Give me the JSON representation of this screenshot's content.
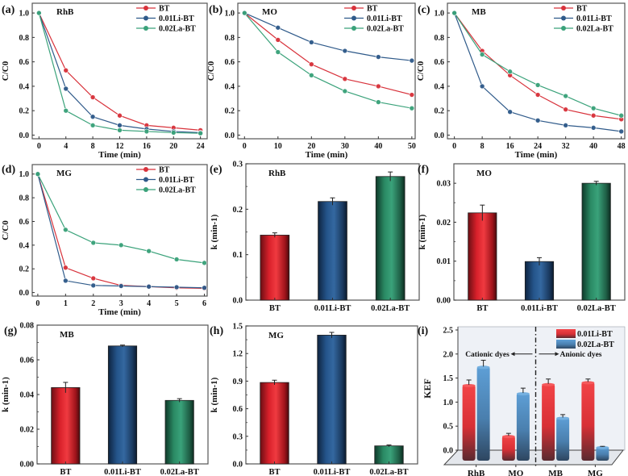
{
  "figure": {
    "colors": {
      "BT": "#d8323b",
      "0.01Li-BT": "#2f5a8a",
      "0.02La-BT": "#3aa27a",
      "kef_Li": "#e03a3e",
      "kef_La": "#5a98cf",
      "frame": "#555555"
    }
  },
  "chart_data": [
    {
      "id": "a",
      "panel_label": "(a)",
      "type": "line",
      "title": "RhB",
      "xlabel": "Time (min)",
      "ylabel": "C/C0",
      "xlim": [
        -1,
        25
      ],
      "ylim": [
        -0.03,
        1.08
      ],
      "xticks": [
        0,
        4,
        8,
        12,
        16,
        20,
        24
      ],
      "yticks": [
        0.0,
        0.2,
        0.4,
        0.6,
        0.8,
        1.0
      ],
      "ytick_labels": [
        "0.0",
        "0.2",
        "0.4",
        "0.6",
        "0.8",
        "1.0"
      ],
      "legend": "top-right",
      "x": [
        0,
        4,
        8,
        12,
        16,
        20,
        24
      ],
      "series": [
        {
          "name": "BT",
          "values": [
            1.0,
            0.53,
            0.31,
            0.16,
            0.08,
            0.06,
            0.04
          ]
        },
        {
          "name": "0.01Li-BT",
          "values": [
            1.0,
            0.38,
            0.15,
            0.08,
            0.05,
            0.03,
            0.02
          ]
        },
        {
          "name": "0.02La-BT",
          "values": [
            1.0,
            0.2,
            0.08,
            0.04,
            0.03,
            0.02,
            0.015
          ]
        }
      ]
    },
    {
      "id": "b",
      "panel_label": "(b)",
      "type": "line",
      "title": "MO",
      "xlabel": "Time (min)",
      "ylabel": "C/C0",
      "xlim": [
        -2,
        51
      ],
      "ylim": [
        -0.03,
        1.08
      ],
      "xticks": [
        0,
        10,
        20,
        30,
        40,
        50
      ],
      "yticks": [
        0.0,
        0.2,
        0.4,
        0.6,
        0.8,
        1.0
      ],
      "ytick_labels": [
        "0.0",
        "0.2",
        "0.4",
        "0.6",
        "0.8",
        "1.0"
      ],
      "legend": "top-right",
      "x": [
        0,
        10,
        20,
        30,
        40,
        50
      ],
      "series": [
        {
          "name": "BT",
          "values": [
            1.0,
            0.78,
            0.58,
            0.46,
            0.4,
            0.33
          ]
        },
        {
          "name": "0.01Li-BT",
          "values": [
            1.0,
            0.88,
            0.76,
            0.69,
            0.64,
            0.61
          ]
        },
        {
          "name": "0.02La-BT",
          "values": [
            1.0,
            0.68,
            0.49,
            0.36,
            0.27,
            0.22
          ]
        }
      ]
    },
    {
      "id": "c",
      "panel_label": "(c)",
      "type": "line",
      "title": "MB",
      "xlabel": "Time (min)",
      "ylabel": "C/C0",
      "xlim": [
        -2,
        49
      ],
      "ylim": [
        -0.03,
        1.08
      ],
      "xticks": [
        0,
        8,
        16,
        24,
        32,
        40,
        48
      ],
      "yticks": [
        0.0,
        0.2,
        0.4,
        0.6,
        0.8,
        1.0
      ],
      "ytick_labels": [
        "0.0",
        "0.2",
        "0.4",
        "0.6",
        "0.8",
        "1.0"
      ],
      "legend": "top-right",
      "x": [
        0,
        8,
        16,
        24,
        32,
        40,
        48
      ],
      "series": [
        {
          "name": "BT",
          "values": [
            1.0,
            0.69,
            0.49,
            0.33,
            0.21,
            0.16,
            0.13
          ]
        },
        {
          "name": "0.01Li-BT",
          "values": [
            1.0,
            0.4,
            0.19,
            0.12,
            0.08,
            0.06,
            0.03
          ]
        },
        {
          "name": "0.02La-BT",
          "values": [
            1.0,
            0.66,
            0.52,
            0.41,
            0.32,
            0.22,
            0.16
          ]
        }
      ]
    },
    {
      "id": "d",
      "panel_label": "(d)",
      "type": "line",
      "title": "MG",
      "xlabel": "Time (min)",
      "ylabel": "C/C0",
      "xlim": [
        -0.2,
        6.1
      ],
      "ylim": [
        -0.03,
        1.08
      ],
      "xticks": [
        0,
        1,
        2,
        3,
        4,
        5,
        6
      ],
      "yticks": [
        0.0,
        0.2,
        0.4,
        0.6,
        0.8,
        1.0
      ],
      "ytick_labels": [
        "0.0",
        "0.2",
        "0.4",
        "0.6",
        "0.8",
        "1.0"
      ],
      "legend": "top-right",
      "x": [
        0,
        1,
        2,
        3,
        4,
        5,
        6
      ],
      "series": [
        {
          "name": "BT",
          "values": [
            1.0,
            0.21,
            0.12,
            0.06,
            0.05,
            0.04,
            0.035
          ]
        },
        {
          "name": "0.01Li-BT",
          "values": [
            1.0,
            0.1,
            0.06,
            0.055,
            0.05,
            0.045,
            0.04
          ]
        },
        {
          "name": "0.02La-BT",
          "values": [
            1.0,
            0.53,
            0.42,
            0.4,
            0.35,
            0.28,
            0.25
          ]
        }
      ]
    },
    {
      "id": "e",
      "panel_label": "(e)",
      "type": "bar",
      "title": "RhB",
      "xlabel": "",
      "ylabel": "k (min-1)",
      "ylim": [
        0,
        0.3
      ],
      "yticks": [
        0.0,
        0.1,
        0.2,
        0.3
      ],
      "ytick_labels": [
        "0.0",
        "0.1",
        "0.2",
        "0.3"
      ],
      "categories": [
        "BT",
        "0.01Li-BT",
        "0.02La-BT"
      ],
      "values": [
        0.143,
        0.217,
        0.272
      ],
      "errors": [
        0.005,
        0.008,
        0.01
      ]
    },
    {
      "id": "f",
      "panel_label": "(f)",
      "type": "bar",
      "title": "MO",
      "xlabel": "",
      "ylabel": "k (min-1)",
      "ylim": [
        0,
        0.035
      ],
      "yticks": [
        0.0,
        0.01,
        0.02,
        0.03
      ],
      "ytick_labels": [
        "0.00",
        "0.01",
        "0.02",
        "0.03"
      ],
      "categories": [
        "BT",
        "0.01Li-BT",
        "0.02La-BT"
      ],
      "values": [
        0.0224,
        0.0099,
        0.03
      ],
      "errors": [
        0.002,
        0.001,
        0.0005
      ]
    },
    {
      "id": "g",
      "panel_label": "(g)",
      "type": "bar",
      "title": "MB",
      "xlabel": "",
      "ylabel": "k (min-1)",
      "ylim": [
        0,
        0.08
      ],
      "yticks": [
        0.0,
        0.02,
        0.04,
        0.06,
        0.08
      ],
      "ytick_labels": [
        "0.00",
        "0.02",
        "0.04",
        "0.06",
        "0.08"
      ],
      "categories": [
        "BT",
        "0.01Li-BT",
        "0.02La-BT"
      ],
      "values": [
        0.044,
        0.068,
        0.0366
      ],
      "errors": [
        0.003,
        0.0005,
        0.001
      ]
    },
    {
      "id": "h",
      "panel_label": "(h)",
      "type": "bar",
      "title": "MG",
      "xlabel": "",
      "ylabel": "k (min-1)",
      "ylim": [
        0,
        1.5
      ],
      "yticks": [
        0.0,
        0.3,
        0.6,
        0.9,
        1.2,
        1.5
      ],
      "ytick_labels": [
        "0.0",
        "0.3",
        "0.6",
        "0.9",
        "1.2",
        "1.5"
      ],
      "categories": [
        "BT",
        "0.01Li-BT",
        "0.02La-BT"
      ],
      "values": [
        0.885,
        1.4,
        0.196
      ],
      "errors": [
        0.025,
        0.03,
        0.01
      ]
    },
    {
      "id": "i",
      "panel_label": "(i)",
      "type": "bar",
      "title": "",
      "xlabel": "",
      "ylabel": "KEF",
      "ylim": [
        0,
        2.5
      ],
      "yticks": [
        0.0,
        0.5,
        1.0,
        1.5,
        2.0,
        2.5
      ],
      "ytick_labels": [
        "0.0",
        "0.5",
        "1.0",
        "1.5",
        "2.0",
        "2.5"
      ],
      "categories": [
        "RhB",
        "MO",
        "MB",
        "MG"
      ],
      "legend": "top-right",
      "annotations": {
        "left": "Cationic dyes",
        "right": "Anionic dyes"
      },
      "series": [
        {
          "name": "0.01Li-BT",
          "values": [
            1.36,
            0.3,
            1.38,
            1.42
          ],
          "errors": [
            0.1,
            0.05,
            0.1,
            0.06
          ]
        },
        {
          "name": "0.02La-BT",
          "values": [
            1.74,
            1.19,
            0.68,
            0.07
          ],
          "errors": [
            0.13,
            0.1,
            0.06,
            0.01
          ]
        }
      ]
    }
  ]
}
